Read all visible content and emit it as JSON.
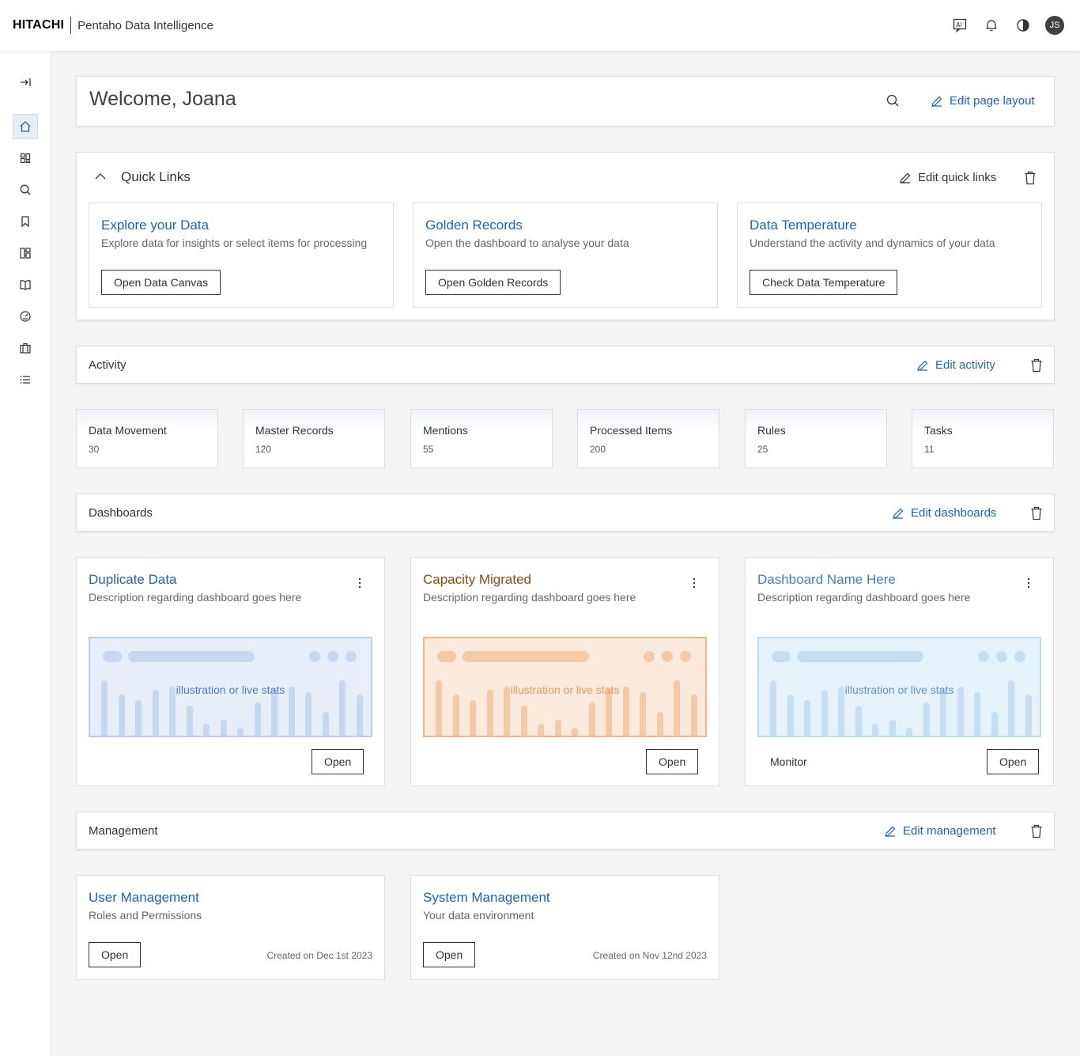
{
  "header": {
    "logo": "HITACHI",
    "app_name": "Pentaho Data Intelligence",
    "avatar_initials": "JS",
    "icons": [
      "ai-assistant-icon",
      "bell-icon",
      "theme-toggle-icon"
    ]
  },
  "sidenav": {
    "items": [
      "collapse-icon",
      "home-icon",
      "dashboard-icon",
      "search-icon",
      "bookmark-icon",
      "catalog-icon",
      "book-icon",
      "gauge-icon",
      "briefcase-icon",
      "list-icon"
    ],
    "active": "home-icon"
  },
  "welcome": {
    "title": "Welcome, Joana",
    "edit_label": "Edit page layout"
  },
  "quick_links": {
    "title": "Quick Links",
    "edit_label": "Edit quick links",
    "cards": [
      {
        "title": "Explore your Data",
        "desc": "Explore data for insights or select items for processing",
        "button": "Open Data Canvas"
      },
      {
        "title": "Golden Records",
        "desc": "Open the dashboard to analyse your data",
        "button": "Open Golden Records"
      },
      {
        "title": "Data Temperature",
        "desc": "Understand the activity and dynamics of your data",
        "button": "Check Data Temperature"
      }
    ]
  },
  "activity": {
    "title": "Activity",
    "edit_label": "Edit activity",
    "items": [
      {
        "label": "Data Movement",
        "value": "30"
      },
      {
        "label": "Master Records",
        "value": "120"
      },
      {
        "label": "Mentions",
        "value": "55"
      },
      {
        "label": "Processed Items",
        "value": "200"
      },
      {
        "label": "Rules",
        "value": "25"
      },
      {
        "label": "Tasks",
        "value": "11"
      }
    ]
  },
  "dashboards": {
    "title": "Dashboards",
    "edit_label": "Edit dashboards",
    "cards": [
      {
        "title": "Duplicate Data",
        "desc": "Description regarding dashboard goes here",
        "illustration": "illustration or live stats",
        "button": "Open",
        "extra": "",
        "accent": "#2064b0"
      },
      {
        "title": "Capacity Migrated",
        "desc": "Description regarding dashboard goes here",
        "illustration": "illustration or live stats",
        "button": "Open",
        "extra": "",
        "accent": "#8a4b12"
      },
      {
        "title": "Dashboard Name Here",
        "desc": "Description regarding dashboard goes here",
        "illustration": "illustration or live stats",
        "button": "Open",
        "extra": "Monitor",
        "accent": "#3d7fc4"
      }
    ]
  },
  "management": {
    "title": "Management",
    "edit_label": "Edit management",
    "cards": [
      {
        "title": "User Management",
        "desc": "Roles and Permissions",
        "button": "Open",
        "created": "Created on Dec 1st 2023"
      },
      {
        "title": "System Management",
        "desc": "Your data environment",
        "button": "Open",
        "created": "Created on Nov 12nd 2023"
      }
    ]
  }
}
